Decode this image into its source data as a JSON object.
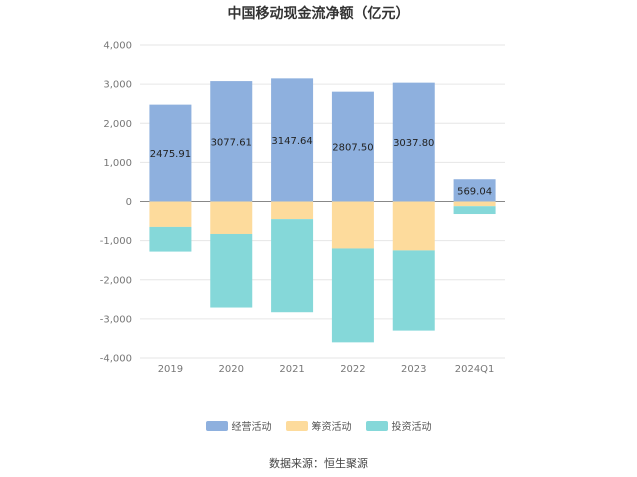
{
  "title": "中国移动现金流净额（亿元）",
  "source": "数据来源：恒生聚源",
  "colors": {
    "operating": "#8eb0de",
    "financing": "#fddb9c",
    "investing": "#85d8d9"
  },
  "chart_data": {
    "type": "bar",
    "stacked": true,
    "title": "中国移动现金流净额（亿元）",
    "categories": [
      "2019",
      "2020",
      "2021",
      "2022",
      "2023",
      "2024Q1"
    ],
    "series": [
      {
        "name": "经营活动",
        "values": [
          2475.91,
          3077.61,
          3147.64,
          2807.5,
          3037.8,
          569.04
        ]
      },
      {
        "name": "筹资活动",
        "values": [
          -650,
          -830,
          -450,
          -1200,
          -1250,
          -120
        ]
      },
      {
        "name": "投资活动",
        "values": [
          -630,
          -1880,
          -2380,
          -2400,
          -2050,
          -200
        ]
      }
    ],
    "data_labels": [
      "2475.91",
      "3077.61",
      "3147.64",
      "2807.50",
      "3037.80",
      "569.04"
    ],
    "yticks": [
      "4,000",
      "3,000",
      "2,000",
      "1,000",
      "0",
      "-1,000",
      "-2,000",
      "-3,000",
      "-4,000"
    ],
    "ylim": [
      -4000,
      4000
    ],
    "grid": true,
    "legend_position": "bottom"
  }
}
